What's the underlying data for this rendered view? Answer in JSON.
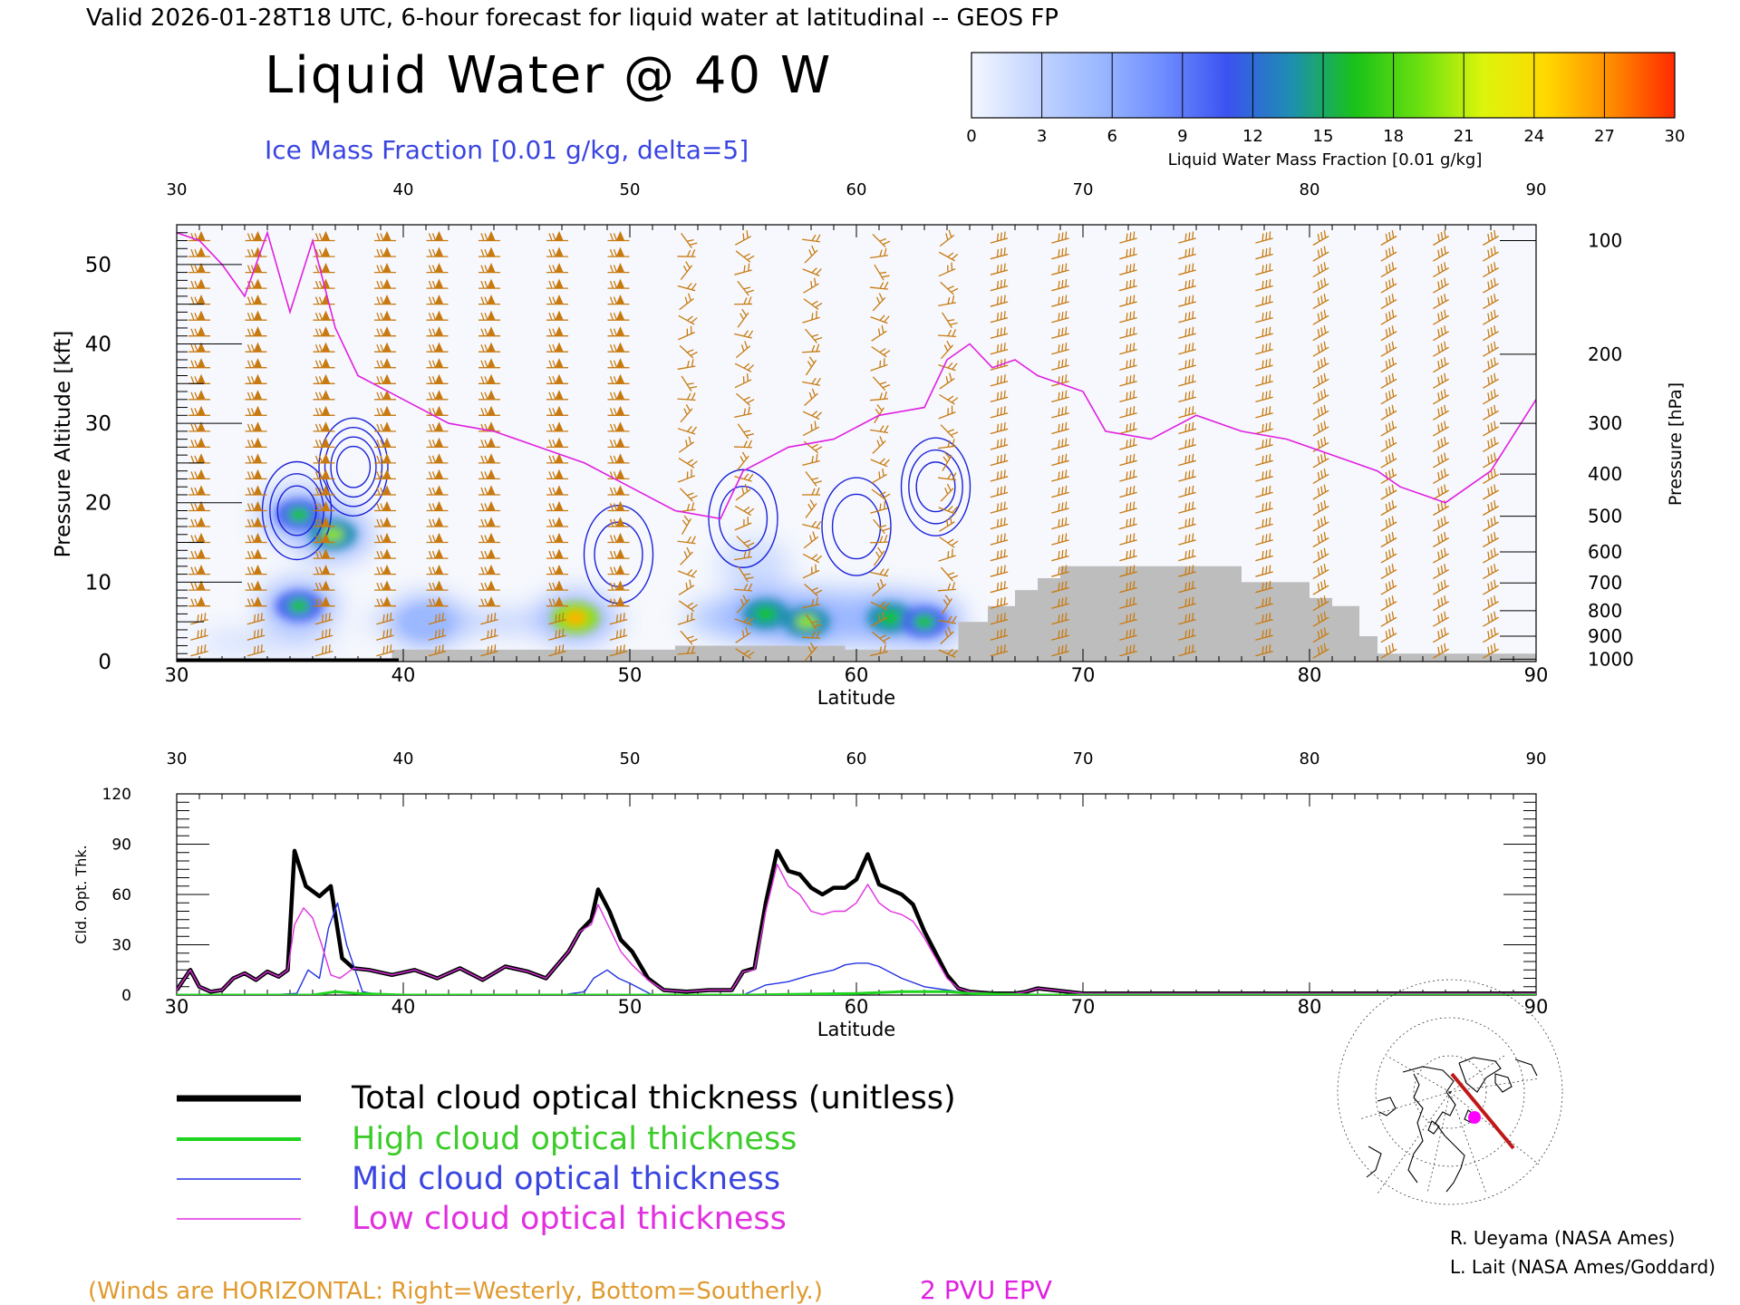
{
  "header": {
    "valid_line": "Valid 2026-01-28T18 UTC, 6-hour forecast for liquid water at latitudinal -- GEOS FP",
    "main_title": "Liquid Water @ 40 W",
    "subtitle": "Ice Mass Fraction [0.01 g/kg, delta=5]"
  },
  "colorbar": {
    "ticks": [
      "0",
      "3",
      "6",
      "9",
      "12",
      "15",
      "18",
      "21",
      "24",
      "27",
      "30"
    ],
    "label": "Liquid Water Mass Fraction [0.01 g/kg]",
    "colors": [
      "#f4f7ff",
      "#c3d4ff",
      "#9bb8ff",
      "#6e8dff",
      "#3b52f0",
      "#1d8fb0",
      "#19c219",
      "#6adf10",
      "#dcf50c",
      "#ffd800",
      "#ff8c00",
      "#ff2a00"
    ]
  },
  "chart_data": [
    {
      "type": "heatmap",
      "title": "Liquid Water @ 40 W",
      "xlabel": "Latitude",
      "ylabel": "Pressure Altitude [kft]",
      "y2label": "Pressure [hPa]",
      "xlim": [
        30,
        90
      ],
      "ylim": [
        0,
        55
      ],
      "x_ticks": [
        "30",
        "40",
        "50",
        "60",
        "70",
        "80",
        "90"
      ],
      "y_ticks": [
        "0",
        "10",
        "20",
        "30",
        "40",
        "50"
      ],
      "pressure_ticks": [
        "100",
        "200",
        "300",
        "400",
        "500",
        "600",
        "700",
        "800",
        "900",
        "1000"
      ],
      "pressure_tick_kft": [
        53,
        38.7,
        30,
        23.6,
        18.3,
        13.8,
        9.9,
        6.4,
        3.2,
        0.3
      ],
      "liquid_water_blobs": [
        {
          "lat": 35.4,
          "kft": 18.5,
          "peak": 16
        },
        {
          "lat": 36.9,
          "kft": 16.0,
          "peak": 20
        },
        {
          "lat": 35.4,
          "kft": 7.0,
          "peak": 17
        },
        {
          "lat": 41.0,
          "kft": 5.0,
          "peak": 8
        },
        {
          "lat": 47.6,
          "kft": 5.5,
          "peak": 26
        },
        {
          "lat": 56.0,
          "kft": 6.0,
          "peak": 18
        },
        {
          "lat": 57.8,
          "kft": 5.0,
          "peak": 19
        },
        {
          "lat": 61.5,
          "kft": 5.5,
          "peak": 18
        },
        {
          "lat": 63.0,
          "kft": 5.0,
          "peak": 17
        }
      ],
      "ice_contours": [
        {
          "lat": 35.3,
          "kft": 19.0,
          "levels": [
            5,
            10,
            15
          ]
        },
        {
          "lat": 37.8,
          "kft": 24.5,
          "levels": [
            5,
            10,
            15,
            20
          ]
        },
        {
          "lat": 49.5,
          "kft": 13.5,
          "levels": [
            5,
            10
          ]
        },
        {
          "lat": 55.0,
          "kft": 18.0,
          "levels": [
            5,
            10
          ]
        },
        {
          "lat": 60.0,
          "kft": 17.0,
          "levels": [
            5,
            10
          ]
        },
        {
          "lat": 63.5,
          "kft": 22.0,
          "levels": [
            5,
            10,
            15
          ]
        }
      ],
      "epv_2pvu_kft": [
        [
          30,
          54
        ],
        [
          31,
          53
        ],
        [
          32,
          50
        ],
        [
          33,
          46
        ],
        [
          34,
          54
        ],
        [
          35,
          44
        ],
        [
          36,
          53
        ],
        [
          37,
          42
        ],
        [
          38,
          36
        ],
        [
          40,
          33
        ],
        [
          42,
          30
        ],
        [
          44,
          29
        ],
        [
          46,
          27
        ],
        [
          48,
          25
        ],
        [
          50,
          22
        ],
        [
          52,
          19
        ],
        [
          54,
          18
        ],
        [
          55,
          24
        ],
        [
          57,
          27
        ],
        [
          59,
          28
        ],
        [
          61,
          31
        ],
        [
          63,
          32
        ],
        [
          64,
          38
        ],
        [
          65,
          40
        ],
        [
          66,
          37
        ],
        [
          67,
          38
        ],
        [
          68,
          36
        ],
        [
          69,
          35
        ],
        [
          70,
          34
        ],
        [
          71,
          29
        ],
        [
          73,
          28
        ],
        [
          75,
          31
        ],
        [
          77,
          29
        ],
        [
          79,
          28
        ],
        [
          81,
          26
        ],
        [
          82,
          25
        ],
        [
          83,
          24
        ],
        [
          84,
          22
        ],
        [
          86,
          20
        ],
        [
          88,
          24
        ],
        [
          90,
          33
        ]
      ],
      "terrain_kft": [
        [
          30,
          0
        ],
        [
          39.5,
          0
        ],
        [
          39.5,
          1.5
        ],
        [
          52,
          1.5
        ],
        [
          52,
          2
        ],
        [
          59.5,
          2
        ],
        [
          59.5,
          1.5
        ],
        [
          64.5,
          1.5
        ],
        [
          64.5,
          5
        ],
        [
          65.8,
          5
        ],
        [
          65.8,
          7
        ],
        [
          67,
          7
        ],
        [
          67,
          9
        ],
        [
          68,
          9
        ],
        [
          68,
          10.5
        ],
        [
          69,
          10.5
        ],
        [
          69,
          12
        ],
        [
          77,
          12
        ],
        [
          77,
          10
        ],
        [
          80,
          10
        ],
        [
          80,
          8
        ],
        [
          81,
          8
        ],
        [
          81,
          7
        ],
        [
          82.2,
          7
        ],
        [
          82.2,
          3.2
        ],
        [
          83,
          3.2
        ],
        [
          83,
          1
        ],
        [
          90,
          1
        ]
      ],
      "barb_lats": [
        31,
        33.5,
        36.5,
        39.2,
        41.5,
        43.8,
        46.8,
        49.5,
        52.5,
        55,
        58,
        61,
        64,
        66.3,
        69,
        72,
        74.6,
        78,
        80.5,
        83.5,
        85.8,
        88
      ]
    },
    {
      "type": "line",
      "xlabel": "Latitude",
      "ylabel": "Cld. Opt. Thk.",
      "xlim": [
        30,
        90
      ],
      "ylim": [
        0,
        120
      ],
      "x_ticks": [
        "30",
        "40",
        "50",
        "60",
        "70",
        "80",
        "90"
      ],
      "y_ticks": [
        "0",
        "30",
        "60",
        "90",
        "120"
      ],
      "series": [
        {
          "name": "Total cloud optical thickness (unitless)",
          "color": "#000000",
          "width": 4.5,
          "x": [
            30,
            30.6,
            31,
            31.5,
            32,
            32.5,
            33,
            33.5,
            34,
            34.5,
            34.9,
            35.2,
            35.7,
            36.3,
            36.8,
            37.3,
            37.8,
            38.5,
            39.5,
            40.5,
            41.5,
            42.5,
            43.5,
            44.5,
            45.5,
            46.3,
            46.8,
            47.3,
            47.8,
            48.3,
            48.6,
            49.1,
            49.6,
            50.1,
            50.8,
            51.5,
            52.5,
            53.5,
            54.5,
            55,
            55.5,
            56,
            56.5,
            57,
            57.5,
            58,
            58.5,
            59,
            59.5,
            60,
            60.5,
            61,
            61.5,
            62,
            62.5,
            63,
            63.5,
            64,
            64.5,
            65,
            66,
            67,
            67.5,
            68,
            70,
            75,
            80,
            85,
            90
          ],
          "y": [
            3,
            15,
            5,
            2,
            3,
            10,
            13,
            9,
            14,
            11,
            15,
            86,
            65,
            59,
            65,
            22,
            16,
            15,
            12,
            15,
            10,
            16,
            9,
            17,
            14,
            10,
            18,
            26,
            38,
            45,
            63,
            50,
            33,
            26,
            10,
            3,
            2,
            3,
            3,
            14,
            16,
            55,
            86,
            74,
            72,
            64,
            60,
            64,
            64,
            69,
            84,
            66,
            63,
            60,
            54,
            38,
            25,
            12,
            4,
            2,
            1,
            1,
            2,
            4,
            1,
            1,
            1,
            1,
            1
          ]
        },
        {
          "name": "High cloud optical thickness",
          "color": "#1ed41e",
          "width": 3,
          "x": [
            30,
            36,
            37,
            38,
            40,
            50,
            55,
            60,
            62,
            64,
            65,
            68,
            70,
            80,
            90
          ],
          "y": [
            0,
            0,
            2,
            1,
            0,
            0,
            0,
            1,
            2,
            2,
            1,
            0,
            0,
            0,
            0
          ]
        },
        {
          "name": "Mid cloud optical thickness",
          "color": "#2433e0",
          "width": 1.4,
          "x": [
            30,
            34,
            35.3,
            35.8,
            36.3,
            36.7,
            37.1,
            37.5,
            38.2,
            39,
            46,
            47,
            48,
            48.4,
            49,
            49.5,
            50,
            51,
            53,
            55,
            56,
            57,
            58,
            59,
            59.5,
            60,
            60.5,
            61,
            62,
            63,
            64,
            65,
            70,
            90
          ],
          "y": [
            0,
            0,
            1,
            15,
            10,
            40,
            55,
            30,
            2,
            0,
            0,
            0,
            2,
            10,
            15,
            10,
            7,
            0,
            0,
            0,
            6,
            8,
            12,
            15,
            18,
            19,
            19,
            17,
            10,
            5,
            3,
            1,
            0,
            0
          ]
        },
        {
          "name": "Low cloud optical thickness",
          "color": "#e030e0",
          "width": 1.4,
          "x": [
            30,
            30.6,
            31,
            31.5,
            32,
            32.5,
            33,
            33.5,
            34,
            34.5,
            34.9,
            35.2,
            35.6,
            36,
            36.4,
            36.8,
            37.2,
            37.8,
            38.5,
            39.5,
            40.5,
            41.5,
            42.5,
            43.5,
            44.5,
            45.5,
            46.3,
            46.8,
            47.3,
            47.8,
            48.3,
            48.6,
            49.1,
            49.6,
            50.1,
            50.8,
            51.5,
            52.5,
            53.5,
            54.5,
            55,
            55.5,
            56,
            56.5,
            57,
            57.5,
            58,
            58.5,
            59,
            59.5,
            60,
            60.5,
            61,
            61.5,
            62,
            62.5,
            63,
            63.5,
            64,
            64.5,
            65,
            66,
            67,
            67.5,
            68,
            70,
            75,
            80,
            85,
            90
          ],
          "y": [
            3,
            15,
            5,
            2,
            3,
            10,
            13,
            9,
            14,
            11,
            15,
            42,
            52,
            46,
            30,
            12,
            10,
            16,
            15,
            12,
            15,
            10,
            16,
            9,
            17,
            14,
            10,
            18,
            26,
            38,
            42,
            54,
            40,
            26,
            18,
            9,
            3,
            2,
            3,
            3,
            14,
            15,
            50,
            78,
            65,
            60,
            50,
            48,
            50,
            50,
            55,
            66,
            55,
            50,
            48,
            44,
            34,
            22,
            10,
            4,
            2,
            1,
            1,
            2,
            4,
            1,
            1,
            1,
            1,
            1
          ]
        }
      ]
    }
  ],
  "legend": {
    "total": "Total cloud optical thickness (unitless)",
    "high": "High cloud optical thickness",
    "mid": "Mid cloud optical thickness",
    "low": "Low cloud optical thickness"
  },
  "footer": {
    "winds_note": "(Winds are HORIZONTAL: Right=Westerly, Bottom=Southerly.)",
    "epv_label": "2 PVU EPV",
    "credit1": "R. Ueyama (NASA Ames)",
    "credit2": "L. Lait (NASA Ames/Goddard)"
  },
  "colors": {
    "epv": "#e020e0",
    "ice": "#1b22d8",
    "terrain": "#bdbdbd",
    "barbs": "#c87a10",
    "winds_note": "#e09a30",
    "ice_title": "#3a45e0"
  }
}
